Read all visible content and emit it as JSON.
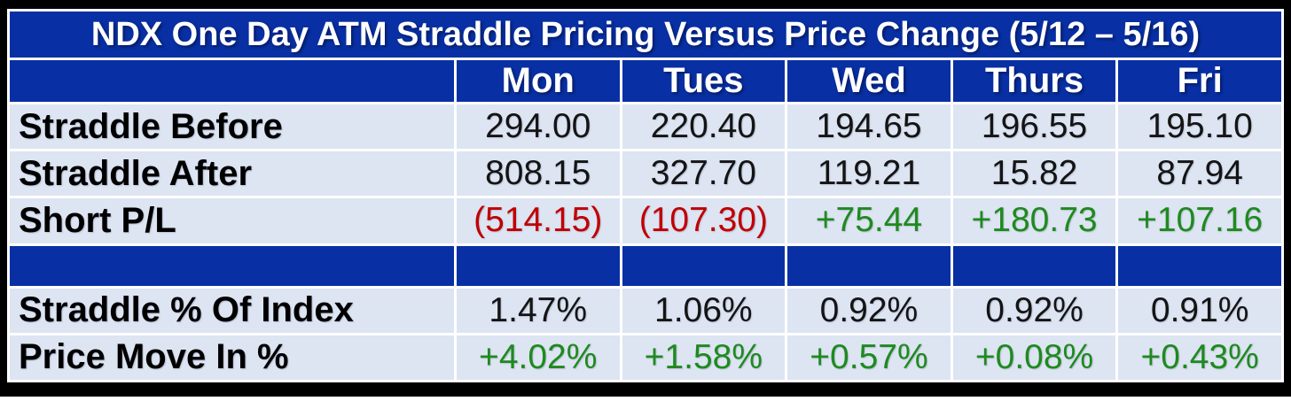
{
  "title": "NDX One Day ATM Straddle Pricing Versus Price Change (5/12 – 5/16)",
  "colors": {
    "header_blue": "#0830a4",
    "row_light": "#dde4f2",
    "grid_white": "#ffffff",
    "frame_black": "#000000",
    "negative_red": "#c00000",
    "positive_green": "#1e8a1e",
    "value_text": "#141414",
    "header_text": "#ffffff"
  },
  "table": {
    "column_headers": [
      "",
      "Mon",
      "Tues",
      "Wed",
      "Thurs",
      "Fri"
    ],
    "rows": [
      {
        "label": "Straddle Before",
        "cells": [
          "294.00",
          "220.40",
          "194.65",
          "196.55",
          "195.10"
        ]
      },
      {
        "label": "Straddle After",
        "cells": [
          "808.15",
          "327.70",
          "119.21",
          "15.82",
          "87.94"
        ]
      },
      {
        "label": "Short P/L",
        "cells": [
          "(514.15)",
          "(107.30)",
          "+75.44",
          "+180.73",
          "+107.16"
        ]
      },
      {
        "label": "Straddle % Of Index",
        "cells": [
          "1.47%",
          "1.06%",
          "0.92%",
          "0.92%",
          "0.91%"
        ]
      },
      {
        "label": "Price Move In %",
        "cells": [
          "+4.02%",
          "+1.58%",
          "+0.57%",
          "+0.08%",
          "+0.43%"
        ]
      }
    ]
  },
  "chart_data": {
    "type": "table",
    "title": "NDX One Day ATM Straddle Pricing Versus Price Change (5/12 – 5/16)",
    "columns": [
      "Mon",
      "Tues",
      "Wed",
      "Thurs",
      "Fri"
    ],
    "rows": [
      {
        "label": "Straddle Before",
        "values": [
          294.0,
          220.4,
          194.65,
          196.55,
          195.1
        ]
      },
      {
        "label": "Straddle After",
        "values": [
          808.15,
          327.7,
          119.21,
          15.82,
          87.94
        ]
      },
      {
        "label": "Short P/L",
        "values": [
          -514.15,
          -107.3,
          75.44,
          180.73,
          107.16
        ]
      },
      {
        "label": "Straddle % Of Index",
        "values": [
          "1.47%",
          "1.06%",
          "0.92%",
          "0.92%",
          "0.91%"
        ]
      },
      {
        "label": "Price Move In %",
        "values": [
          "+4.02%",
          "+1.58%",
          "+0.57%",
          "+0.08%",
          "+0.43%"
        ]
      }
    ],
    "notes": "Negative Short P/L values shown in red parentheses; positive values and upward price moves shown in green with + prefix."
  }
}
